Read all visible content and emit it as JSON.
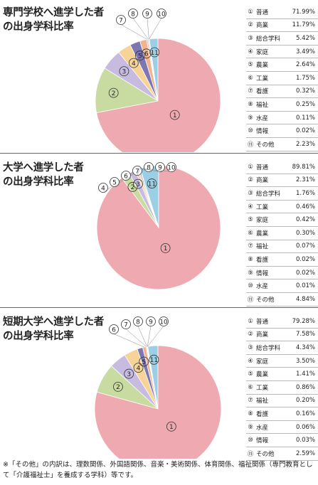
{
  "chart_data": [
    {
      "type": "pie",
      "title": "専門学校へ進学した者\nの出身学科比率",
      "categories": [
        "普通",
        "商業",
        "総合学科",
        "家庭",
        "農業",
        "工業",
        "看護",
        "福祉",
        "水産",
        "情報",
        "その他"
      ],
      "values": [
        71.99,
        11.79,
        5.42,
        3.49,
        2.64,
        1.75,
        0.32,
        0.25,
        0.11,
        0.02,
        2.23
      ],
      "value_labels": [
        "71.99%",
        "11.79%",
        "5.42%",
        "3.49%",
        "2.64%",
        "1.75%",
        "0.32%",
        "0.25%",
        "0.11%",
        "0.02%",
        "2.23%"
      ],
      "colors": [
        "#eeaab0",
        "#c8dba0",
        "#c7bce0",
        "#f7d398",
        "#7d76b2",
        "#f2b48e",
        "#eeaab0",
        "#9da7cc",
        "#a4cfa6",
        "#f0a8a8",
        "#9bcfe6"
      ],
      "markers": [
        "①",
        "②",
        "③",
        "④",
        "⑤",
        "⑥",
        "⑦",
        "⑧",
        "⑨",
        "⑩",
        "⑪"
      ]
    },
    {
      "type": "pie",
      "title": "大学へ進学した者\nの出身学科比率",
      "categories": [
        "普通",
        "商業",
        "総合学科",
        "工業",
        "家庭",
        "農業",
        "福祉",
        "看護",
        "情報",
        "水産",
        "その他"
      ],
      "values": [
        89.81,
        2.31,
        1.76,
        0.46,
        0.42,
        0.3,
        0.07,
        0.02,
        0.02,
        0.01,
        4.84
      ],
      "value_labels": [
        "89.81%",
        "2.31%",
        "1.76%",
        "0.46%",
        "0.42%",
        "0.30%",
        "0.07%",
        "0.02%",
        "0.02%",
        "0.01%",
        "4.84%"
      ],
      "colors": [
        "#eeaab0",
        "#c8dba0",
        "#c7bce0",
        "#f2b48e",
        "#f7d398",
        "#7d76b2",
        "#9da7cc",
        "#eeaab0",
        "#f0a8a8",
        "#a4cfa6",
        "#9bcfe6"
      ],
      "markers": [
        "①",
        "②",
        "③",
        "④",
        "⑤",
        "⑥",
        "⑦",
        "⑧",
        "⑨",
        "⑩",
        "⑪"
      ]
    },
    {
      "type": "pie",
      "title": "短期大学へ進学した者\nの出身学科比率",
      "categories": [
        "普通",
        "商業",
        "総合学科",
        "家庭",
        "農業",
        "工業",
        "福祉",
        "看護",
        "水産",
        "情報",
        "その他"
      ],
      "values": [
        79.28,
        7.58,
        4.34,
        3.5,
        1.41,
        0.86,
        0.2,
        0.16,
        0.06,
        0.03,
        2.59
      ],
      "value_labels": [
        "79.28%",
        "7.58%",
        "4.34%",
        "3.50%",
        "1.41%",
        "0.86%",
        "0.20%",
        "0.16%",
        "0.06%",
        "0.03%",
        "2.59%"
      ],
      "colors": [
        "#eeaab0",
        "#c8dba0",
        "#c7bce0",
        "#f7d398",
        "#7d76b2",
        "#f2b48e",
        "#9da7cc",
        "#eeaab0",
        "#a4cfa6",
        "#f0a8a8",
        "#9bcfe6"
      ],
      "markers": [
        "①",
        "②",
        "③",
        "④",
        "⑤",
        "⑥",
        "⑦",
        "⑧",
        "⑨",
        "⑩",
        "⑪"
      ]
    }
  ],
  "footnote": "※「その他」の内訳は、理数関係、外国語関係、音楽・美術関係、体育関係、福祉関係（専門教育として「介護福祉士」を養成する学科）等です。"
}
